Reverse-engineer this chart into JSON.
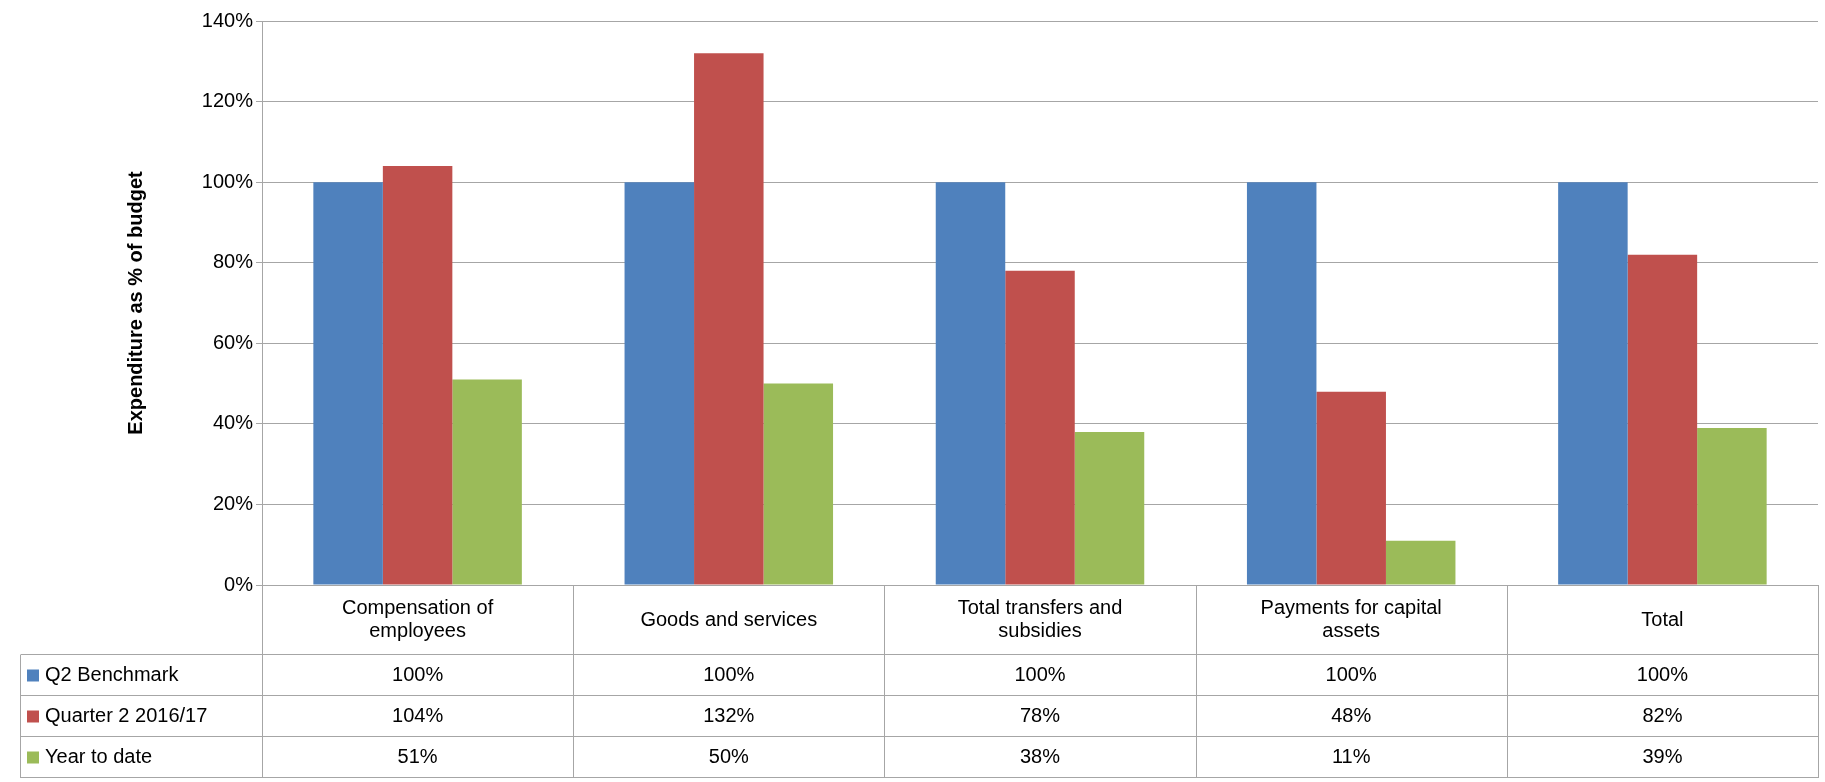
{
  "chart_data": {
    "type": "bar",
    "ylabel": "Expenditure as % of budget",
    "categories": [
      "Compensation of employees",
      "Goods and services",
      "Total transfers and subsidies",
      "Payments for capital assets",
      "Total"
    ],
    "series": [
      {
        "name": "Q2 Benchmark",
        "color": "#4f81bd",
        "values": [
          100,
          100,
          100,
          100,
          100
        ],
        "value_labels": [
          "100%",
          "100%",
          "100%",
          "100%",
          "100%"
        ]
      },
      {
        "name": "Quarter 2 2016/17",
        "color": "#c0504d",
        "values": [
          104,
          132,
          78,
          48,
          82
        ],
        "value_labels": [
          "104%",
          "132%",
          "78%",
          "48%",
          "82%"
        ]
      },
      {
        "name": "Year to date",
        "color": "#9bbb59",
        "values": [
          51,
          50,
          38,
          11,
          39
        ],
        "value_labels": [
          "51%",
          "50%",
          "38%",
          "11%",
          "39%"
        ]
      }
    ],
    "ylim": [
      0,
      140
    ],
    "yticks": [
      {
        "value": 0,
        "label": "0%"
      },
      {
        "value": 20,
        "label": "20%"
      },
      {
        "value": 40,
        "label": "40%"
      },
      {
        "value": 60,
        "label": "60%"
      },
      {
        "value": 80,
        "label": "80%"
      },
      {
        "value": 100,
        "label": "100%"
      },
      {
        "value": 120,
        "label": "120%"
      },
      {
        "value": 140,
        "label": "140%"
      }
    ],
    "grid": "y",
    "legend": "bottom"
  }
}
